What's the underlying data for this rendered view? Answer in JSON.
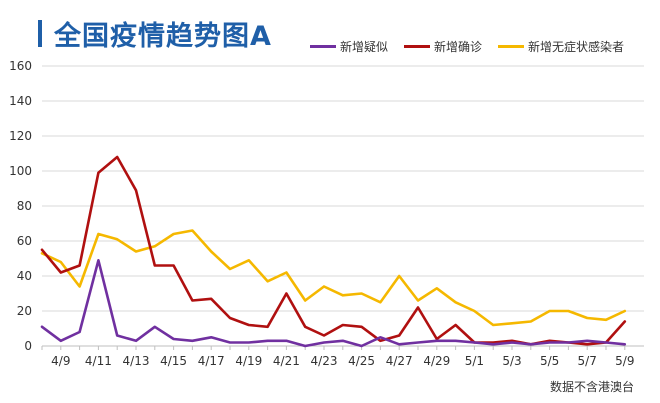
{
  "chart_data": {
    "type": "line",
    "title": "全国疫情趋势图A",
    "source_note": "数据不含港澳台",
    "xlabel": "",
    "ylabel": "",
    "ylim": [
      0,
      160
    ],
    "yticks": [
      0,
      20,
      40,
      60,
      80,
      100,
      120,
      140,
      160
    ],
    "x": [
      "4/8",
      "4/9",
      "4/10",
      "4/11",
      "4/12",
      "4/13",
      "4/14",
      "4/15",
      "4/16",
      "4/17",
      "4/18",
      "4/19",
      "4/20",
      "4/21",
      "4/22",
      "4/23",
      "4/24",
      "4/25",
      "4/26",
      "4/27",
      "4/28",
      "4/29",
      "4/30",
      "5/1",
      "5/2",
      "5/3",
      "5/4",
      "5/5",
      "5/6",
      "5/7",
      "5/8",
      "5/9"
    ],
    "xtick_labels": [
      "4/9",
      "4/11",
      "4/13",
      "4/15",
      "4/17",
      "4/19",
      "4/21",
      "4/23",
      "4/25",
      "4/27",
      "4/29",
      "5/1",
      "5/3",
      "5/5",
      "5/7",
      "5/9"
    ],
    "grid": true,
    "legend_position": "top-right",
    "series": [
      {
        "name": "新增疑似",
        "color": "#7030a0",
        "values": [
          11,
          3,
          8,
          49,
          6,
          3,
          11,
          4,
          3,
          5,
          2,
          2,
          3,
          3,
          0,
          2,
          3,
          0,
          5,
          1,
          2,
          3,
          3,
          2,
          1,
          2,
          1,
          2,
          2,
          3,
          2,
          1
        ]
      },
      {
        "name": "新增确诊",
        "color": "#b01010",
        "values": [
          55,
          42,
          46,
          99,
          108,
          89,
          46,
          46,
          26,
          27,
          16,
          12,
          11,
          30,
          11,
          6,
          12,
          11,
          3,
          6,
          22,
          4,
          12,
          2,
          2,
          3,
          1,
          3,
          2,
          1,
          2,
          14
        ]
      },
      {
        "name": "新增无症状感染者",
        "color": "#f5b800",
        "values": [
          53,
          48,
          34,
          64,
          61,
          54,
          57,
          64,
          66,
          54,
          44,
          49,
          37,
          42,
          26,
          34,
          29,
          30,
          25,
          40,
          26,
          33,
          25,
          20,
          12,
          13,
          14,
          20,
          20,
          16,
          15,
          20
        ]
      }
    ]
  }
}
